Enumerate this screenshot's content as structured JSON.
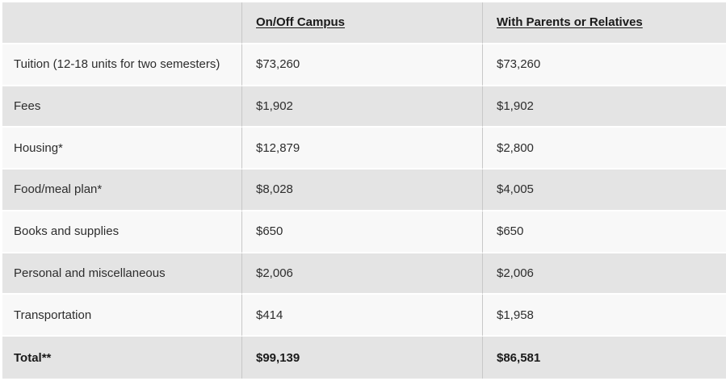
{
  "colors": {
    "page_bg": "#ffffff",
    "row_gray_bg": "#e4e4e4",
    "row_light_bg": "#f8f8f8",
    "column_divider": "#c8c8c8",
    "row_divider": "#ffffff",
    "text": "#2d2d2d",
    "emphasis_text": "#1a1a1a"
  },
  "table": {
    "columns": [
      "",
      "On/Off Campus",
      "With Parents or Relatives"
    ],
    "rows": [
      {
        "label": "Tuition (12-18 units for two semesters)",
        "values": [
          "$73,260",
          "$73,260"
        ]
      },
      {
        "label": "Fees",
        "values": [
          "$1,902",
          "$1,902"
        ]
      },
      {
        "label": "Housing*",
        "values": [
          "$12,879",
          "$2,800"
        ]
      },
      {
        "label": "Food/meal plan*",
        "values": [
          "$8,028",
          "$4,005"
        ]
      },
      {
        "label": "Books and supplies",
        "values": [
          "$650",
          "$650"
        ]
      },
      {
        "label": "Personal and miscellaneous",
        "values": [
          "$2,006",
          "$2,006"
        ]
      },
      {
        "label": "Transportation",
        "values": [
          "$414",
          "$1,958"
        ]
      }
    ],
    "total": {
      "label": "Total**",
      "values": [
        "$99,139",
        "$86,581"
      ]
    }
  },
  "chart_data": {
    "type": "table",
    "columns": [
      "",
      "On/Off Campus",
      "With Parents or Relatives"
    ],
    "rows": [
      [
        "Tuition (12-18 units for two semesters)",
        "$73,260",
        "$73,260"
      ],
      [
        "Fees",
        "$1,902",
        "$1,902"
      ],
      [
        "Housing*",
        "$12,879",
        "$2,800"
      ],
      [
        "Food/meal plan*",
        "$8,028",
        "$4,005"
      ],
      [
        "Books and supplies",
        "$650",
        "$650"
      ],
      [
        "Personal and miscellaneous",
        "$2,006",
        "$2,006"
      ],
      [
        "Transportation",
        "$414",
        "$1,958"
      ],
      [
        "Total**",
        "$99,139",
        "$86,581"
      ]
    ],
    "legend_position": "none",
    "grid": "row-and-column-dividers"
  }
}
